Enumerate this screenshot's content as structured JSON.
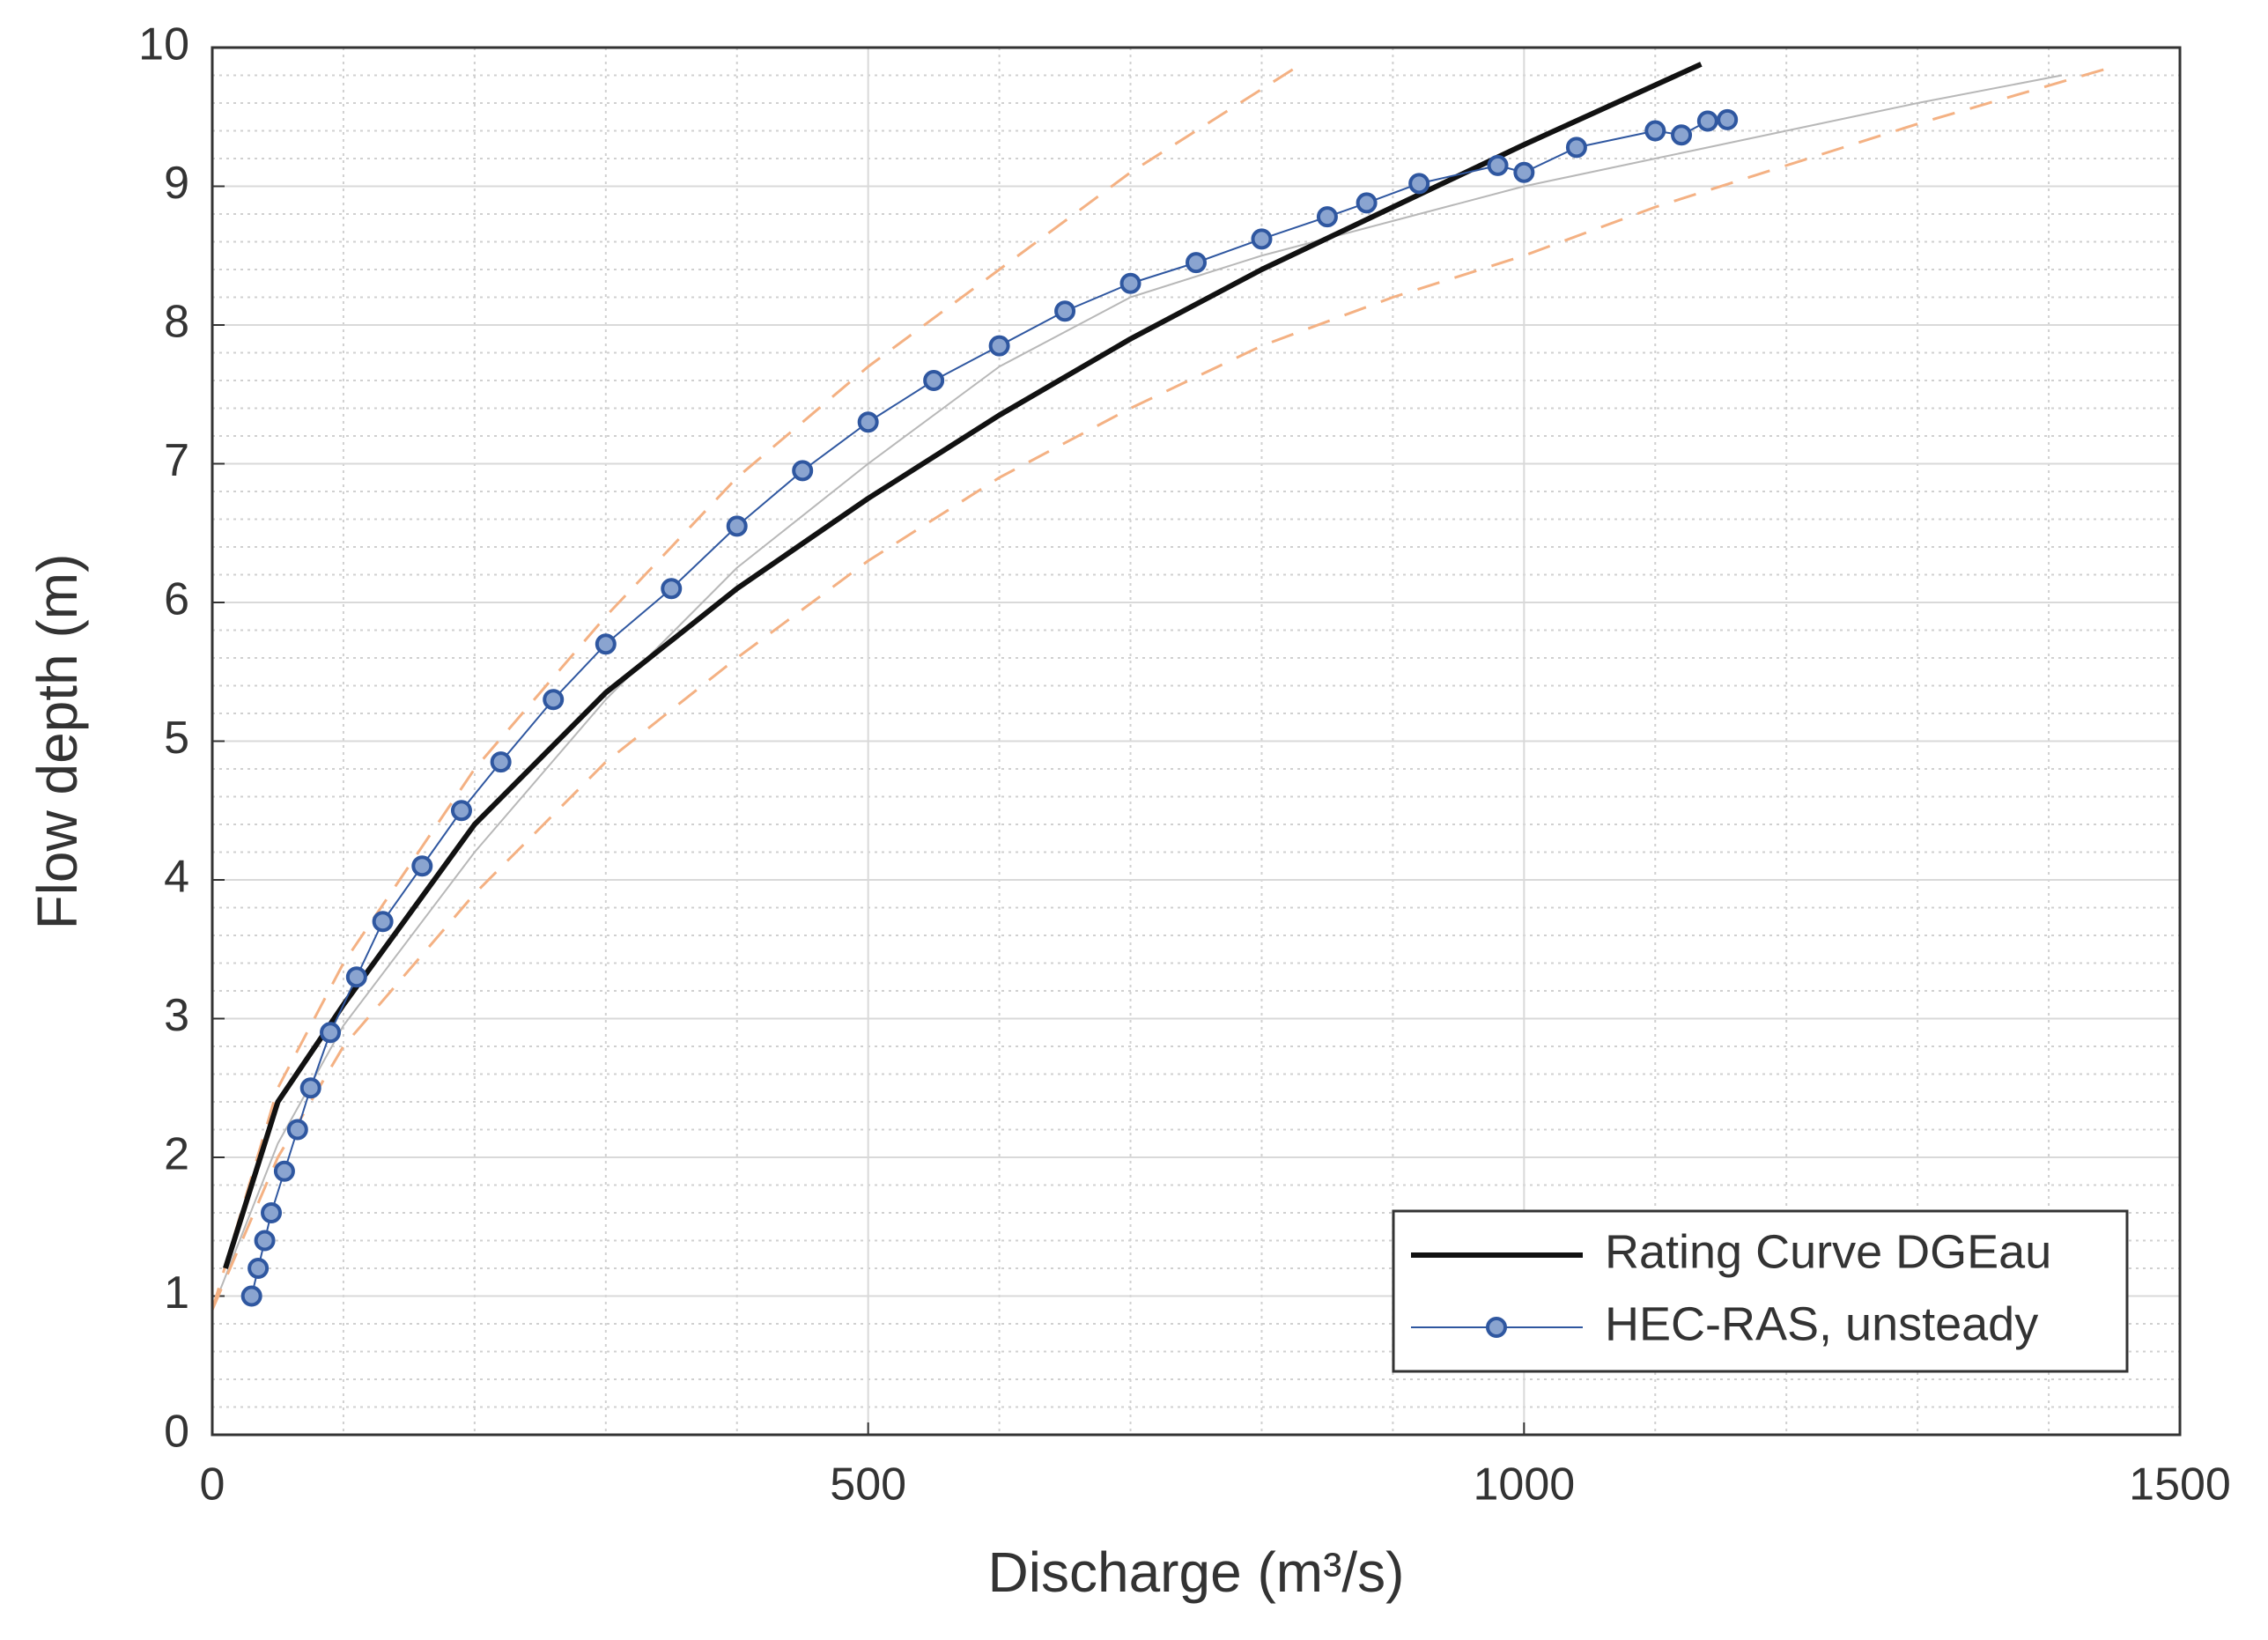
{
  "chart_data": {
    "type": "line",
    "xlabel": "Discharge (m³/s)",
    "ylabel": "Flow depth (m)",
    "xlim": [
      0,
      1500
    ],
    "xticks": [
      0,
      500,
      1000,
      1500
    ],
    "ylim": [
      0,
      10
    ],
    "yticks": [
      0,
      1,
      2,
      3,
      4,
      5,
      6,
      7,
      8,
      9,
      10
    ],
    "xminorticks": [
      100,
      200,
      300,
      400,
      600,
      700,
      800,
      900,
      1100,
      1200,
      1300,
      1400
    ],
    "yminorticks": [
      0.2,
      0.4,
      0.6,
      0.8,
      1.2,
      1.4,
      1.6,
      1.8,
      2.2,
      2.4,
      2.6,
      2.8,
      3.2,
      3.4,
      3.6,
      3.8,
      4.2,
      4.4,
      4.6,
      4.8,
      5.2,
      5.4,
      5.6,
      5.8,
      6.2,
      6.4,
      6.6,
      6.8,
      7.2,
      7.4,
      7.6,
      7.8,
      8.2,
      8.4,
      8.6,
      8.8,
      9.2,
      9.4,
      9.6,
      9.8
    ],
    "grid": true,
    "legend": "lower right",
    "series": [
      {
        "color": "#b8b8b8",
        "width": 2,
        "dash": false,
        "x": [
          0,
          50,
          100,
          200,
          300,
          400,
          500,
          600,
          700,
          800,
          900,
          1000,
          1100,
          1200,
          1300,
          1410
        ],
        "values": [
          0.9,
          2.1,
          2.95,
          4.2,
          5.3,
          6.25,
          7.0,
          7.7,
          8.2,
          8.5,
          8.75,
          9.0,
          9.2,
          9.4,
          9.6,
          9.8
        ]
      },
      {
        "color": "#f4b183",
        "width": 3,
        "dash": true,
        "x": [
          0,
          50,
          100,
          200,
          300,
          400,
          500,
          600,
          700,
          825
        ],
        "values": [
          0.9,
          2.5,
          3.4,
          4.8,
          5.9,
          6.9,
          7.7,
          8.4,
          9.1,
          9.85
        ]
      },
      {
        "color": "#f4b183",
        "width": 3,
        "dash": true,
        "x": [
          0,
          50,
          100,
          200,
          300,
          400,
          500,
          600,
          700,
          800,
          900,
          1000,
          1100,
          1200,
          1300,
          1445
        ],
        "values": [
          0.9,
          2.0,
          2.8,
          3.9,
          4.85,
          5.6,
          6.3,
          6.9,
          7.4,
          7.85,
          8.2,
          8.5,
          8.85,
          9.15,
          9.45,
          9.85
        ]
      },
      {
        "name": "Rating Curve DGEau",
        "color": "#111111",
        "width": 6,
        "dash": false,
        "x": [
          10,
          50,
          100,
          200,
          300,
          400,
          500,
          600,
          700,
          800,
          900,
          1000,
          1135
        ],
        "values": [
          1.2,
          2.4,
          3.1,
          4.4,
          5.35,
          6.1,
          6.75,
          7.35,
          7.9,
          8.4,
          8.85,
          9.3,
          9.88
        ]
      },
      {
        "name": "HEC-RAS, unsteady",
        "color": "#2f57a0",
        "width": 2,
        "dash": false,
        "marker": true,
        "x": [
          30,
          35,
          40,
          45,
          55,
          65,
          75,
          90,
          110,
          130,
          160,
          190,
          220,
          260,
          300,
          350,
          400,
          450,
          500,
          550,
          600,
          650,
          700,
          750,
          800,
          850,
          880,
          920,
          980,
          1000,
          1040,
          1100,
          1120,
          1140,
          1155
        ],
        "values": [
          1.0,
          1.2,
          1.4,
          1.6,
          1.9,
          2.2,
          2.5,
          2.9,
          3.3,
          3.7,
          4.1,
          4.5,
          4.85,
          5.3,
          5.7,
          6.1,
          6.55,
          6.95,
          7.3,
          7.6,
          7.85,
          8.1,
          8.3,
          8.45,
          8.62,
          8.78,
          8.88,
          9.02,
          9.15,
          9.1,
          9.28,
          9.4,
          9.37,
          9.47,
          9.48
        ]
      }
    ]
  }
}
